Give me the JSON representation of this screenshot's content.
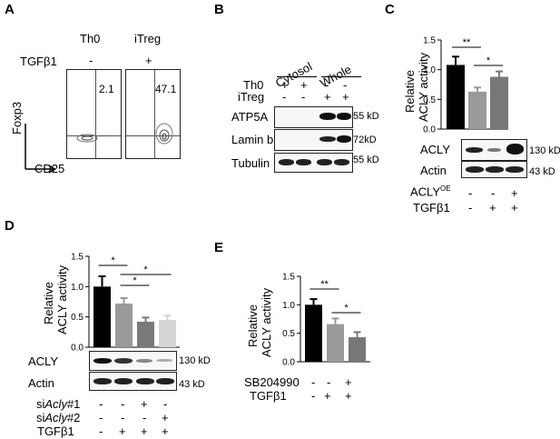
{
  "panels": {
    "A": "A",
    "B": "B",
    "C": "C",
    "D": "D",
    "E": "E"
  },
  "A": {
    "groups": [
      "Th0",
      "iTreg"
    ],
    "tgfb1_label": "TGFβ1",
    "tgfb1_values": [
      "-",
      "+"
    ],
    "percentages": [
      "2.1",
      "47.1"
    ],
    "y_axis": "Foxp3",
    "x_axis": "CD25"
  },
  "B": {
    "fractions": [
      "Cytosol",
      "Whole"
    ],
    "row_labels": [
      "Th0",
      "iTreg"
    ],
    "th0_signs": [
      "+",
      "+",
      "-",
      "-"
    ],
    "itreg_signs": [
      "-",
      "-",
      "+",
      "+"
    ],
    "blots": [
      "ATP5A",
      "Lamin b",
      "Tubulin"
    ],
    "markers": [
      "55 kD",
      "72kD",
      "55 kD"
    ]
  },
  "C": {
    "ylabel_1": "Relative",
    "ylabel_2": "ACLY activity",
    "yticks": [
      "0.0",
      "0.5",
      "1.0",
      "1.5"
    ],
    "blots": [
      "ACLY",
      "Actin"
    ],
    "markers": [
      "130 kD",
      "43 kD"
    ],
    "rows": [
      {
        "label": "ACLY",
        "sup": "OE",
        "signs": [
          "-",
          "-",
          "+"
        ]
      },
      {
        "label": "TGFβ1",
        "sup": "",
        "signs": [
          "-",
          "+",
          "+"
        ]
      }
    ],
    "sig": [
      "**",
      "*"
    ]
  },
  "D": {
    "ylabel_1": "Relative",
    "ylabel_2": "ACLY activity",
    "yticks": [
      "0.0",
      "0.5",
      "1.0",
      "1.5"
    ],
    "blots": [
      "ACLY",
      "Actin"
    ],
    "markers": [
      "130 kD",
      "43 kD"
    ],
    "rows": [
      {
        "prefix": "si",
        "italic": "Acly",
        "suffix": "#1",
        "signs": [
          "-",
          "-",
          "+",
          "-"
        ]
      },
      {
        "prefix": "si",
        "italic": "Acly",
        "suffix": "#2",
        "signs": [
          "-",
          "-",
          "-",
          "+"
        ]
      },
      {
        "prefix": "TGFβ1",
        "italic": "",
        "suffix": "",
        "signs": [
          "-",
          "+",
          "+",
          "+"
        ]
      }
    ],
    "sig": [
      "*",
      "*",
      "*"
    ]
  },
  "E": {
    "ylabel_1": "Relative",
    "ylabel_2": "ACLY activity",
    "yticks": [
      "0.0",
      "0.5",
      "1.0",
      "1.5"
    ],
    "rows": [
      {
        "label": "SB204990",
        "signs": [
          "-",
          "-",
          "+"
        ]
      },
      {
        "label": "TGFβ1",
        "signs": [
          "-",
          "+",
          "+"
        ]
      }
    ],
    "sig": [
      "**",
      "*"
    ]
  },
  "chart_data": [
    {
      "type": "bar",
      "panel": "C",
      "categories": [
        "ACLY OE - / TGFβ1 -",
        "ACLY OE - / TGFβ1 +",
        "ACLY OE + / TGFβ1 +"
      ],
      "values": [
        1.08,
        0.63,
        0.88
      ],
      "errors": [
        0.14,
        0.07,
        0.09
      ],
      "colors": [
        "#000000",
        "#999999",
        "#777777"
      ],
      "ylabel": "Relative ACLY activity",
      "ylim": [
        0,
        1.5
      ]
    },
    {
      "type": "bar",
      "panel": "D",
      "categories": [
        "control",
        "TGFβ1",
        "TGFβ1 + siAcly#1",
        "TGFβ1 + siAcly#2"
      ],
      "values": [
        1.0,
        0.72,
        0.42,
        0.45
      ],
      "errors": [
        0.17,
        0.09,
        0.07,
        0.07
      ],
      "colors": [
        "#000000",
        "#9a9a9a",
        "#7a7a7a",
        "#d6d6d6"
      ],
      "ylabel": "Relative ACLY activity",
      "ylim": [
        0,
        1.5
      ]
    },
    {
      "type": "bar",
      "panel": "E",
      "categories": [
        "control",
        "TGFβ1",
        "TGFβ1 + SB204990"
      ],
      "values": [
        1.0,
        0.66,
        0.43
      ],
      "errors": [
        0.1,
        0.1,
        0.09
      ],
      "colors": [
        "#000000",
        "#9a9a9a",
        "#777777"
      ],
      "ylabel": "Relative ACLY activity",
      "ylim": [
        0,
        1.5
      ]
    }
  ]
}
